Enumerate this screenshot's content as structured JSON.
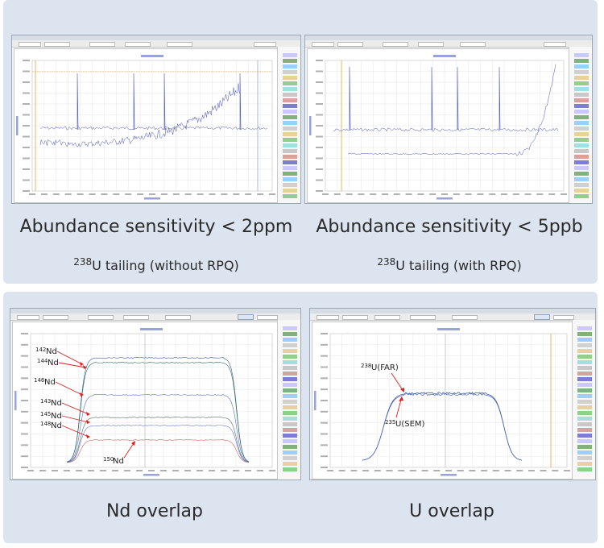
{
  "captions": {
    "top_left_title": "Abundance sensitivity  < 2ppm",
    "top_right_title": "Abundance sensitivity < 5ppb",
    "top_left_sub_mass": "238",
    "top_left_sub_text": "U tailing (without RPQ)",
    "top_right_sub_mass": "238",
    "top_right_sub_text": "U tailing (with RPQ)",
    "bottom_left_title": "Nd overlap",
    "bottom_right_title": "U overlap"
  },
  "colors": {
    "panel_bg": "#dbe4ef",
    "trace_blue": "#4a55b0",
    "arrow_red": "#e0201c",
    "cursor_orange": "#e8a13a",
    "grid": "#e4e4e4"
  },
  "chart_data": [
    {
      "type": "line",
      "panel": "top-left",
      "description_source": "238U tailing (without RPQ)",
      "series": [
        {
          "values_shape": "baseline with rising tail and spikes"
        }
      ]
    },
    {
      "type": "line",
      "panel": "top-right",
      "description_source": "238U tailing (with RPQ)",
      "series": [
        {
          "values_shape": "flat baseline with steep rise near right edge"
        }
      ]
    },
    {
      "type": "line",
      "panel": "bottom-left",
      "series": [
        {
          "name": "142Nd",
          "mass": "142",
          "element": "Nd"
        },
        {
          "name": "144Nd",
          "mass": "144",
          "element": "Nd"
        },
        {
          "name": "146Nd",
          "mass": "146",
          "element": "Nd"
        },
        {
          "name": "143Nd",
          "mass": "143",
          "element": "Nd"
        },
        {
          "name": "145Nd",
          "mass": "145",
          "element": "Nd"
        },
        {
          "name": "148Nd",
          "mass": "148",
          "element": "Nd"
        },
        {
          "name": "150Nd",
          "mass": "150",
          "element": "Nd"
        }
      ]
    },
    {
      "type": "line",
      "panel": "bottom-right",
      "series": [
        {
          "name": "238U(FAR)",
          "mass": "238",
          "label": "U(FAR)"
        },
        {
          "name": "235U(SEM)",
          "mass": "235",
          "label": "U(SEM)"
        }
      ]
    }
  ]
}
